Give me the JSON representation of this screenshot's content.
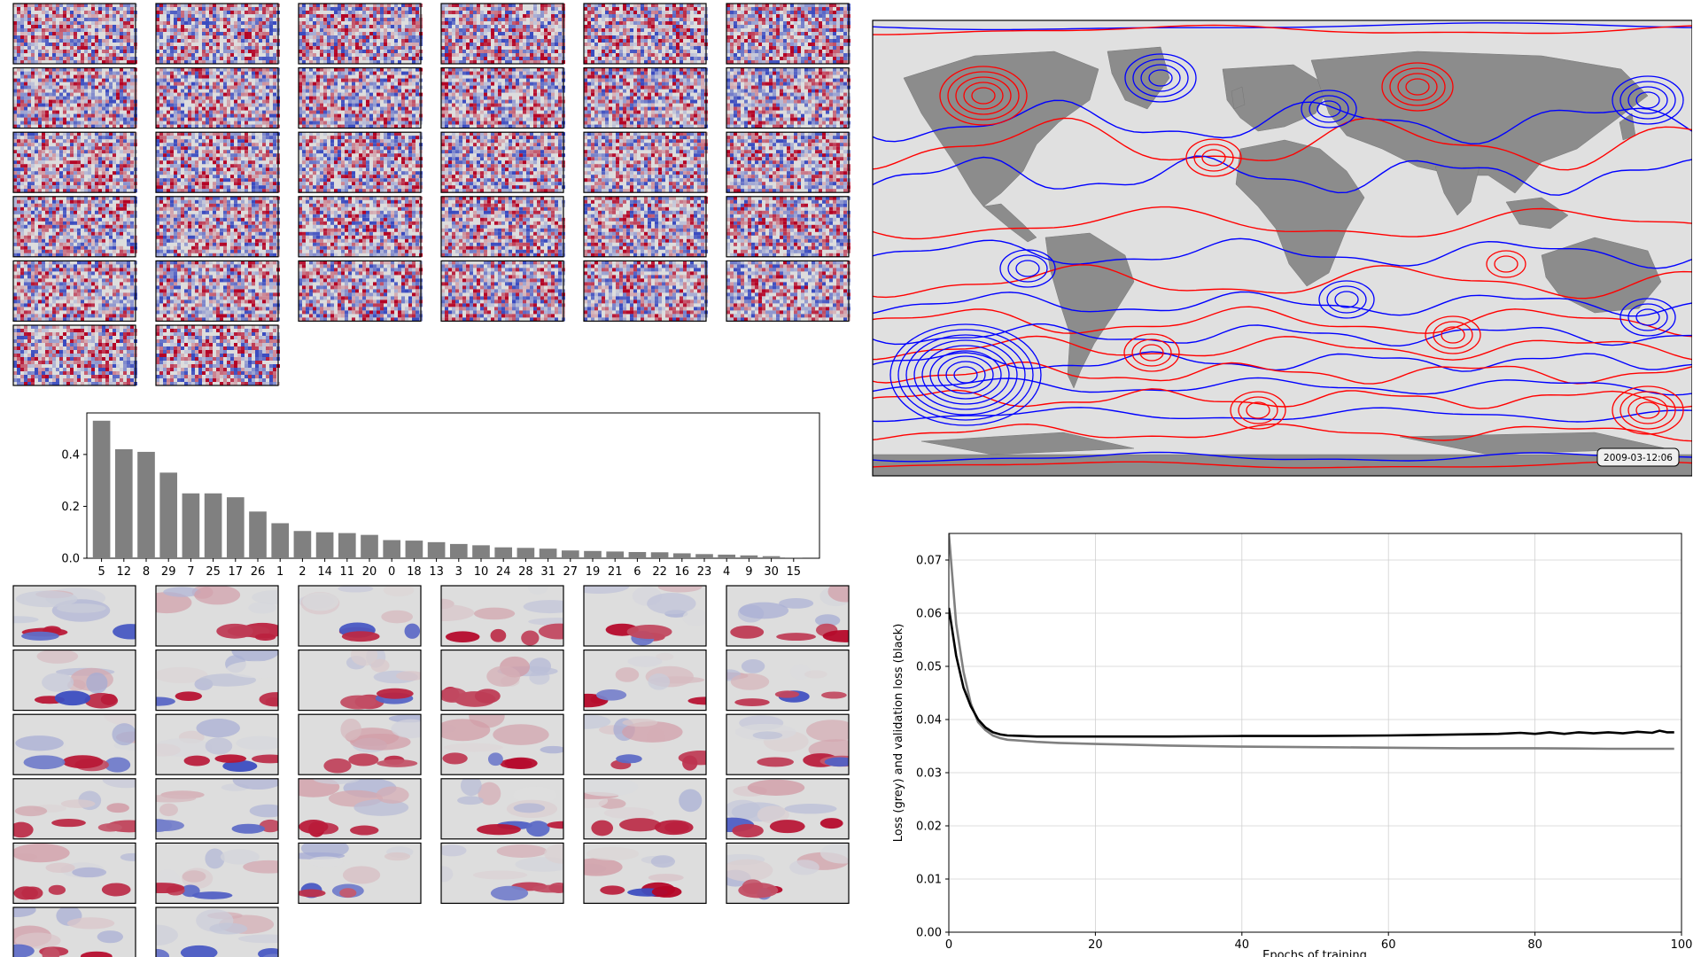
{
  "colors": {
    "bar": "#808080",
    "loss": "#808080",
    "val_loss": "#000000",
    "contour_a": "#0000ff",
    "contour_b": "#ff0000",
    "ocean": "#e0e0e0",
    "land": "#8c8c8c"
  },
  "weights_grid": {
    "description_count": 32,
    "columns": 6,
    "style": "noise",
    "palette": "coolwarm"
  },
  "modes_grid": {
    "count": 32,
    "columns": 6,
    "style": "smooth",
    "palette": "coolwarm"
  },
  "map": {
    "timestamp": "2009-03-12:06"
  },
  "chart_data": [
    {
      "type": "bar",
      "title": "",
      "xlabel": "",
      "ylabel": "",
      "categories": [
        "5",
        "12",
        "8",
        "29",
        "7",
        "25",
        "17",
        "26",
        "1",
        "2",
        "14",
        "11",
        "20",
        "0",
        "18",
        "13",
        "3",
        "10",
        "24",
        "28",
        "31",
        "27",
        "19",
        "21",
        "6",
        "22",
        "16",
        "23",
        "4",
        "9",
        "30",
        "15"
      ],
      "values": [
        0.53,
        0.42,
        0.41,
        0.33,
        0.25,
        0.25,
        0.235,
        0.18,
        0.135,
        0.105,
        0.1,
        0.097,
        0.09,
        0.07,
        0.068,
        0.062,
        0.055,
        0.05,
        0.042,
        0.04,
        0.037,
        0.03,
        0.028,
        0.026,
        0.024,
        0.023,
        0.019,
        0.016,
        0.014,
        0.011,
        0.008,
        0.003
      ],
      "ylim": [
        0,
        0.56
      ],
      "yticks": [
        "0.0",
        "0.2",
        "0.4"
      ],
      "ytick_values": [
        0,
        0.2,
        0.4
      ],
      "grid": false
    },
    {
      "type": "line",
      "title": "",
      "xlabel": "Epochs of training",
      "ylabel": "Loss (grey) and validation loss (black)",
      "xlim": [
        0,
        100
      ],
      "ylim": [
        0,
        0.075
      ],
      "xticks": [
        "0",
        "20",
        "40",
        "60",
        "80",
        "100"
      ],
      "xtick_values": [
        0,
        20,
        40,
        60,
        80,
        100
      ],
      "yticks": [
        "0.00",
        "0.01",
        "0.02",
        "0.03",
        "0.04",
        "0.05",
        "0.06",
        "0.07"
      ],
      "ytick_values": [
        0,
        0.01,
        0.02,
        0.03,
        0.04,
        0.05,
        0.06,
        0.07
      ],
      "grid": true,
      "series": [
        {
          "key": "loss",
          "x": [
            0,
            1,
            2,
            3,
            4,
            5,
            6,
            7,
            8,
            10,
            12,
            15,
            20,
            30,
            40,
            50,
            60,
            70,
            80,
            90,
            99
          ],
          "y": [
            0.075,
            0.058,
            0.049,
            0.043,
            0.0395,
            0.038,
            0.037,
            0.0365,
            0.0362,
            0.036,
            0.0358,
            0.0356,
            0.0354,
            0.0351,
            0.0349,
            0.0348,
            0.0347,
            0.0346,
            0.0346,
            0.0345,
            0.0345
          ]
        },
        {
          "key": "val_loss",
          "x": [
            0,
            1,
            2,
            3,
            4,
            5,
            6,
            7,
            8,
            10,
            12,
            15,
            20,
            30,
            40,
            50,
            60,
            65,
            70,
            75,
            78,
            80,
            82,
            84,
            86,
            88,
            90,
            92,
            94,
            96,
            97,
            98,
            99
          ],
          "y": [
            0.061,
            0.052,
            0.046,
            0.0425,
            0.04,
            0.0385,
            0.0376,
            0.0372,
            0.037,
            0.0369,
            0.0368,
            0.0368,
            0.0368,
            0.0368,
            0.0369,
            0.0369,
            0.037,
            0.0371,
            0.0372,
            0.0373,
            0.0375,
            0.0373,
            0.0376,
            0.0373,
            0.0376,
            0.0374,
            0.0376,
            0.0374,
            0.0377,
            0.0375,
            0.0379,
            0.0376,
            0.0376
          ]
        }
      ]
    }
  ]
}
